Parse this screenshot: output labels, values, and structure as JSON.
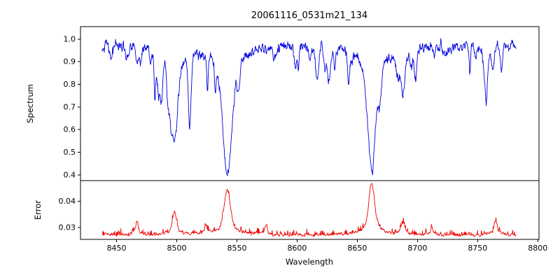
{
  "title": "20061116_0531m21_134",
  "chart_data": {
    "type": "line",
    "title": "20061116_0531m21_134",
    "xlabel": "Wavelength",
    "xlim": [
      8420,
      8801
    ],
    "x_range_data": [
      8438,
      8782
    ],
    "xticks": [
      8450,
      8500,
      8550,
      8600,
      8650,
      8700,
      8750,
      8800
    ],
    "legend": "none",
    "grid": false,
    "panels": [
      {
        "name": "spectrum",
        "ylabel": "Spectrum",
        "ylim": [
          0.375,
          1.055
        ],
        "yticks": [
          0.4,
          0.5,
          0.6,
          0.7,
          0.8,
          0.9,
          1.0
        ],
        "ytick_format": 1,
        "line_color": "#0000dd",
        "continuum": 0.972,
        "noise_amplitude": 0.0095,
        "jitter_amplitude": 0.012,
        "absorption_lines": [
          {
            "center": 8498,
            "depth": 0.415,
            "sigma": 2.6
          },
          {
            "center": 8542,
            "depth": 0.565,
            "sigma": 3.4
          },
          {
            "center": 8662,
            "depth": 0.525,
            "sigma": 3.2
          },
          {
            "center": 8688,
            "depth": 0.2,
            "sigma": 1.6
          }
        ],
        "minor_lines": {
          "count": 55,
          "depth_range": [
            0.02,
            0.13
          ],
          "sigma_range": [
            0.5,
            1.4
          ],
          "seed": 20061116
        }
      },
      {
        "name": "error",
        "ylabel": "Error",
        "ylim": [
          0.0255,
          0.0478
        ],
        "yticks": [
          0.03,
          0.04
        ],
        "ytick_format": 2,
        "line_color": "#ee0000",
        "baseline": 0.0272,
        "noise_amplitude": 0.0007,
        "peaks": [
          {
            "center": 8498,
            "height": 0.0088,
            "sigma": 1.6
          },
          {
            "center": 8542,
            "height": 0.0168,
            "sigma": 2.4
          },
          {
            "center": 8662,
            "height": 0.0193,
            "sigma": 2.2
          },
          {
            "center": 8688,
            "height": 0.0045,
            "sigma": 1.4
          },
          {
            "center": 8433,
            "height": 0.0058,
            "sigma": 1.0
          },
          {
            "center": 8467,
            "height": 0.0048,
            "sigma": 1.0
          },
          {
            "center": 8524,
            "height": 0.0032,
            "sigma": 1.0
          },
          {
            "center": 8574,
            "height": 0.0035,
            "sigma": 1.0
          },
          {
            "center": 8712,
            "height": 0.0028,
            "sigma": 1.0
          },
          {
            "center": 8765,
            "height": 0.0055,
            "sigma": 1.2
          }
        ]
      }
    ]
  }
}
